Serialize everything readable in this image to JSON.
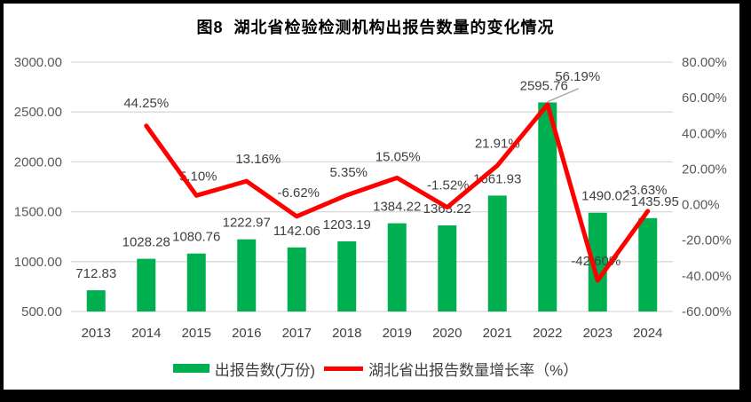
{
  "title": "图8  湖北省检验检测机构出报告数量的变化情况",
  "legend": {
    "items": [
      {
        "label": "出报告数(万份)",
        "marker": "bar",
        "color": "#00B050"
      },
      {
        "label": "湖北省出报告数量增长率（%）",
        "marker": "line",
        "color": "#FF0000"
      }
    ]
  },
  "colors": {
    "bar": "#00B050",
    "line": "#FF0000",
    "gridline": "#D9D9D9",
    "axis_text": "#595959",
    "data_label": "#404040",
    "leader_line": "#A6A6A6",
    "frame": "#000000",
    "background": "#FFFFFF"
  },
  "chart_data": {
    "type": "combo",
    "title": "图8  湖北省检验检测机构出报告数量的变化情况",
    "categories": [
      "2013",
      "2014",
      "2015",
      "2016",
      "2017",
      "2018",
      "2019",
      "2020",
      "2021",
      "2022",
      "2023",
      "2024"
    ],
    "series": [
      {
        "name": "出报告数(万份)",
        "type": "bar",
        "axis": "left",
        "color": "#00B050",
        "values": [
          712.83,
          1028.28,
          1080.76,
          1222.97,
          1142.06,
          1203.19,
          1384.22,
          1363.22,
          1661.93,
          2595.76,
          1490.02,
          1435.95
        ]
      },
      {
        "name": "湖北省出报告数量增长率（%）",
        "type": "line",
        "axis": "right",
        "color": "#FF0000",
        "values": [
          null,
          44.25,
          5.1,
          13.16,
          -6.62,
          5.35,
          15.05,
          -1.52,
          21.91,
          56.19,
          -42.6,
          -3.63
        ]
      }
    ],
    "axes": {
      "left": {
        "min": 500,
        "max": 3000,
        "step": 500,
        "tick_labels": [
          "500.00",
          "1000.00",
          "1500.00",
          "2000.00",
          "2500.00",
          "3000.00"
        ]
      },
      "right": {
        "min": -60,
        "max": 80,
        "step": 20,
        "tick_labels": [
          "-60.00%",
          "-40.00%",
          "-20.00%",
          "0.00%",
          "20.00%",
          "40.00%",
          "60.00%",
          "80.00%"
        ]
      }
    },
    "grid": true,
    "legend_position": "bottom"
  }
}
